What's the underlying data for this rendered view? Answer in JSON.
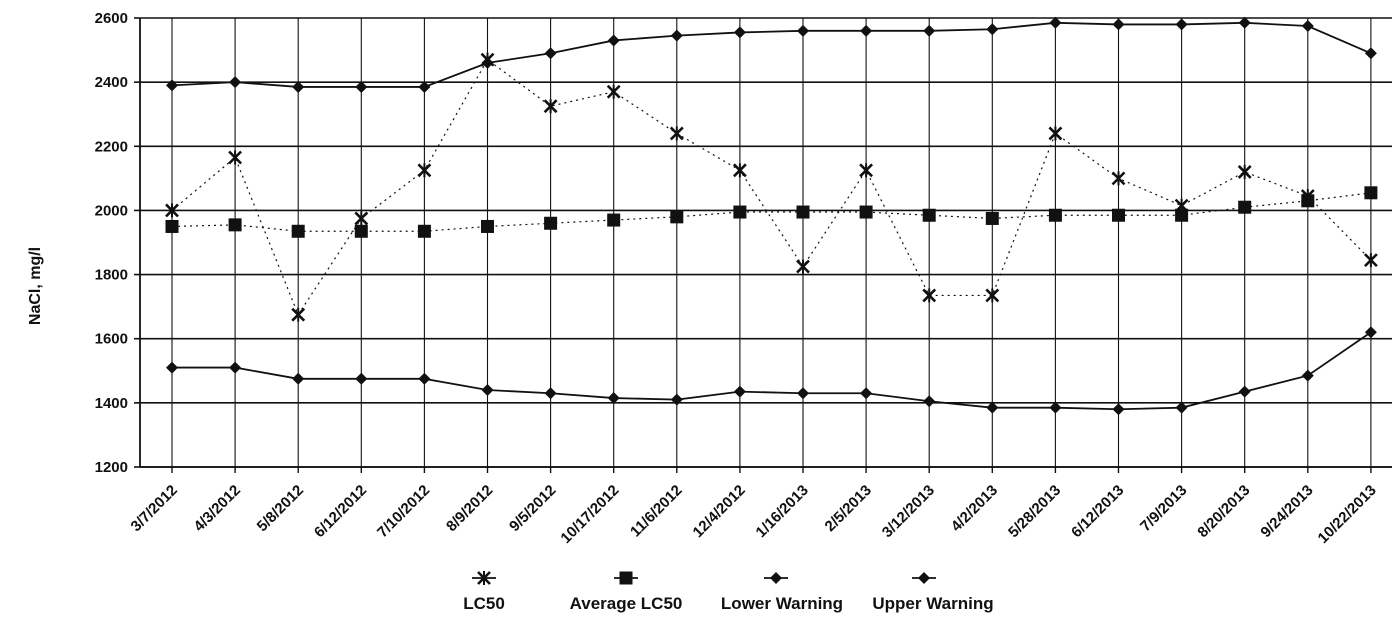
{
  "chart_data": {
    "type": "line",
    "ylabel": "NaCl, mg/l",
    "xlabel": "",
    "ylim": [
      1200,
      2600
    ],
    "yticks": [
      1200,
      1400,
      1600,
      1800,
      2000,
      2200,
      2400,
      2600
    ],
    "grid": "horizontal and vertical",
    "legend_position": "bottom",
    "categories": [
      "3/7/2012",
      "4/3/2012",
      "5/8/2012",
      "6/12/2012",
      "7/10/2012",
      "8/9/2012",
      "9/5/2012",
      "10/17/2012",
      "11/6/2012",
      "12/4/2012",
      "1/16/2013",
      "2/5/2013",
      "3/12/2013",
      "4/2/2013",
      "5/28/2013",
      "6/12/2013",
      "7/9/2013",
      "8/20/2013",
      "9/24/2013",
      "10/22/2013"
    ],
    "series": [
      {
        "name": "LC50",
        "marker": "star",
        "line": "dotted",
        "values": [
          2000,
          2165,
          1675,
          1975,
          2125,
          2470,
          2325,
          2370,
          2240,
          2125,
          1825,
          2125,
          1735,
          1735,
          2240,
          2100,
          2015,
          2120,
          2045,
          1845
        ]
      },
      {
        "name": "Average LC50",
        "marker": "square",
        "line": "dotted",
        "values": [
          1950,
          1955,
          1935,
          1935,
          1935,
          1950,
          1960,
          1970,
          1980,
          1995,
          1995,
          1995,
          1985,
          1975,
          1985,
          1985,
          1985,
          2010,
          2030,
          2055
        ]
      },
      {
        "name": "Lower Warning",
        "marker": "diamond",
        "line": "solid",
        "values": [
          1510,
          1510,
          1475,
          1475,
          1475,
          1440,
          1430,
          1415,
          1410,
          1435,
          1430,
          1430,
          1405,
          1385,
          1385,
          1380,
          1385,
          1435,
          1485,
          1620
        ]
      },
      {
        "name": "Upper Warning",
        "marker": "diamond",
        "line": "solid",
        "values": [
          2390,
          2400,
          2385,
          2385,
          2385,
          2460,
          2490,
          2530,
          2545,
          2555,
          2560,
          2560,
          2560,
          2565,
          2585,
          2580,
          2580,
          2585,
          2575,
          2490
        ]
      }
    ]
  }
}
